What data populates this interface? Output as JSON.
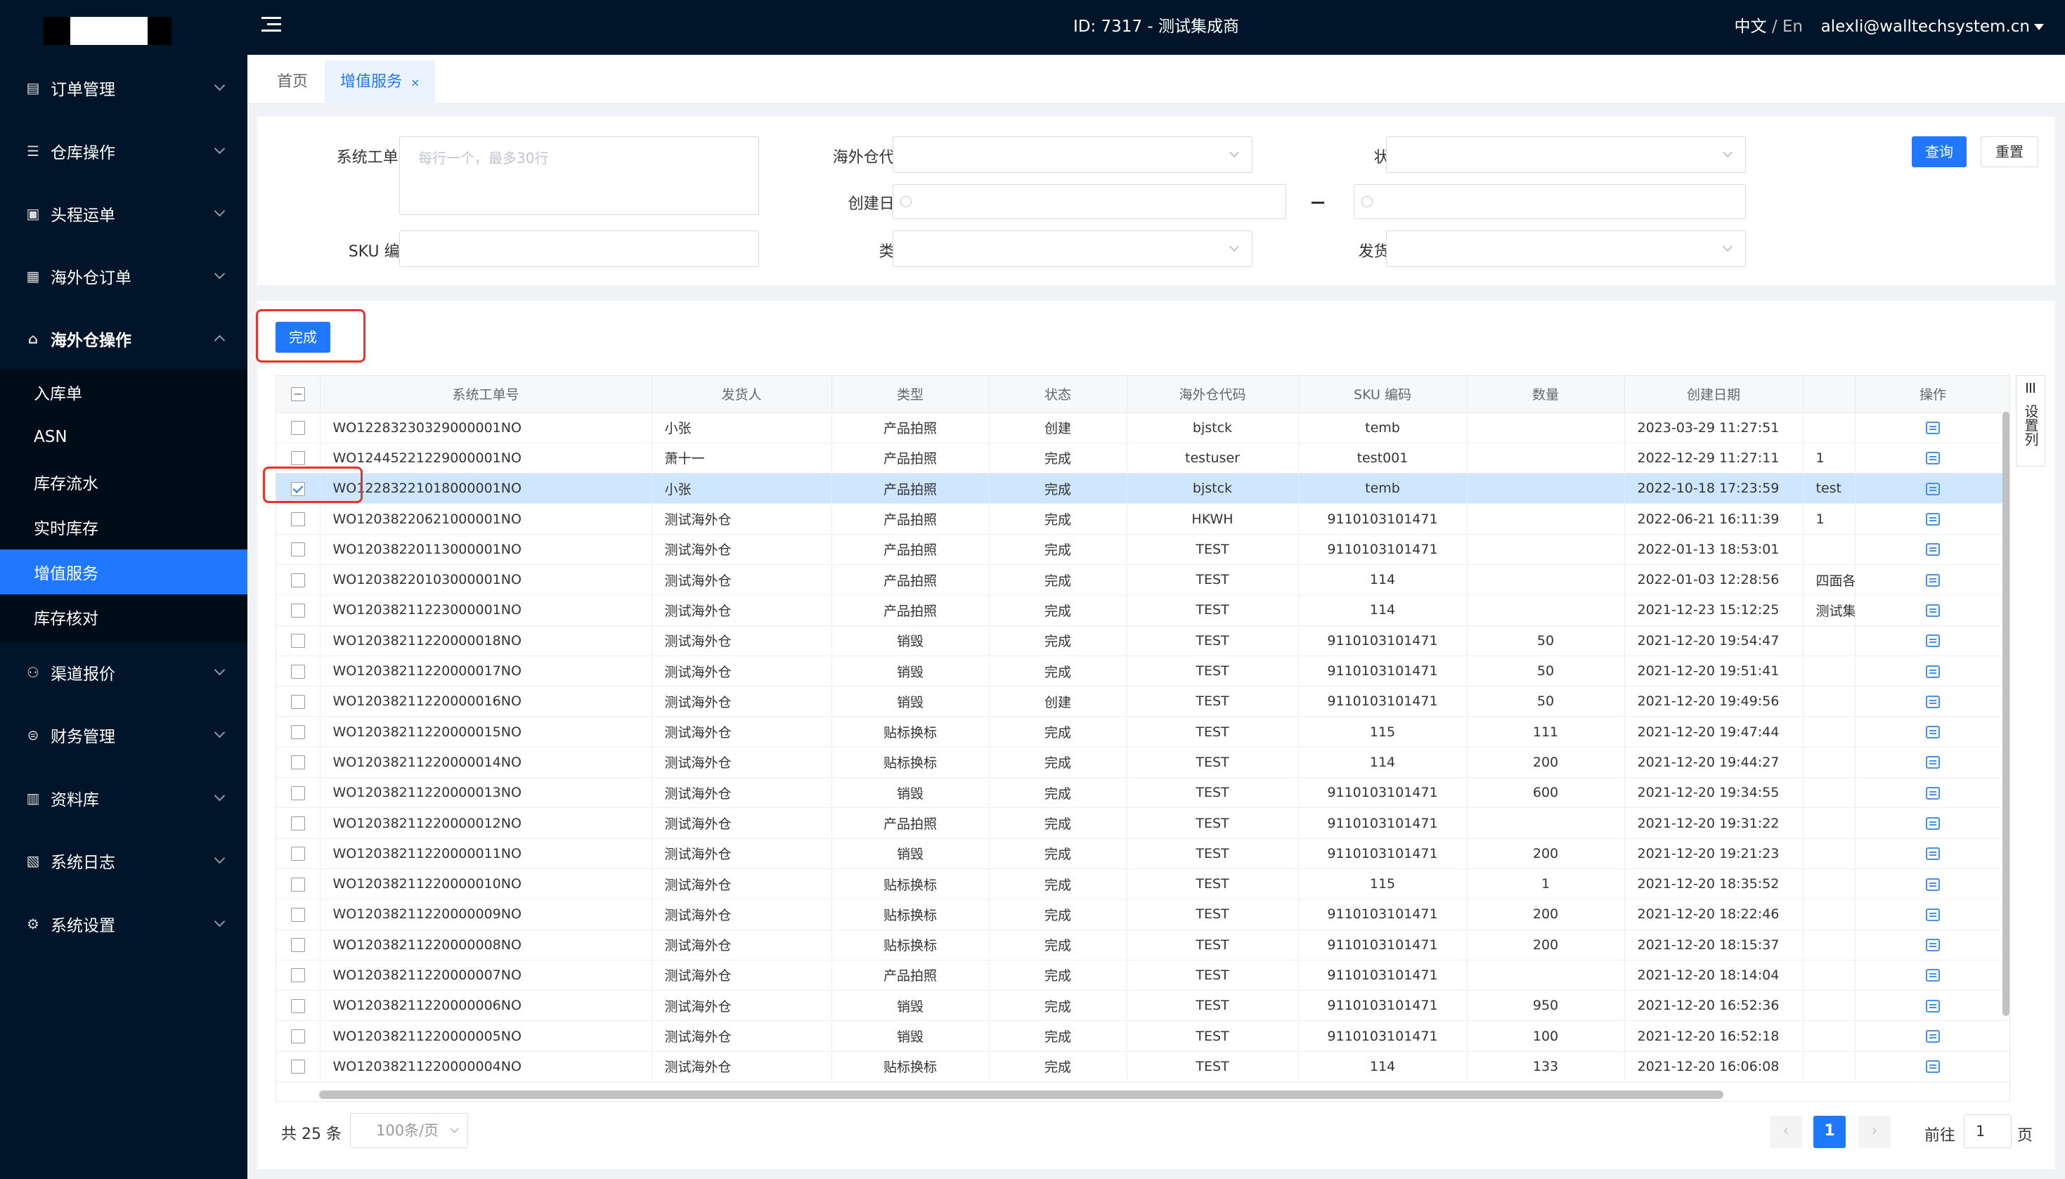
{
  "header": {
    "title": "ID: 7317 - 测试集成商",
    "lang_zh": "中文",
    "lang_sep": " / ",
    "lang_en": "En",
    "user_email": "alexli@walltechsystem.cn"
  },
  "sidebar": {
    "items": [
      {
        "label": "订单管理",
        "icon": "order-icon"
      },
      {
        "label": "仓库操作",
        "icon": "warehouse-icon"
      },
      {
        "label": "头程运单",
        "icon": "waybill-icon"
      },
      {
        "label": "海外仓订单",
        "icon": "overseas-order-icon"
      },
      {
        "label": "海外仓操作",
        "icon": "overseas-ops-icon"
      },
      {
        "label": "渠道报价",
        "icon": "channel-icon"
      },
      {
        "label": "财务管理",
        "icon": "finance-icon"
      },
      {
        "label": "资料库",
        "icon": "database-icon"
      },
      {
        "label": "系统日志",
        "icon": "log-icon"
      },
      {
        "label": "系统设置",
        "icon": "settings-icon"
      }
    ],
    "submenu": [
      "入库单",
      "ASN",
      "库存流水",
      "实时库存",
      "增值服务",
      "库存核对"
    ],
    "active_sub": "增值服务"
  },
  "tabs": {
    "home": "首页",
    "active": "增值服务",
    "close": "×"
  },
  "filters": {
    "sys_no_label": "系统工单号:",
    "sys_no_placeholder": "每行一个，最多30行",
    "wh_code_label": "海外仓代码:",
    "status_label": "状态:",
    "date_label": "创建日期:",
    "sku_label": "SKU 编码:",
    "type_label": "类型:",
    "shipper_label": "发货人:",
    "query": "查询",
    "reset": "重置"
  },
  "actions": {
    "complete": "完成"
  },
  "table": {
    "columns": [
      "系统工单号",
      "发货人",
      "类型",
      "状态",
      "海外仓代码",
      "SKU 编码",
      "数量",
      "创建日期",
      "",
      "操作"
    ],
    "rows": [
      [
        "WO12283230329000001NO",
        "小张",
        "产品拍照",
        "创建",
        "bjstck",
        "temb",
        "",
        "2023-03-29 11:27:51",
        ""
      ],
      [
        "WO12445221229000001NO",
        "萧十一",
        "产品拍照",
        "完成",
        "testuser",
        "test001",
        "",
        "2022-12-29 11:27:11",
        "1"
      ],
      [
        "WO12283221018000001NO",
        "小张",
        "产品拍照",
        "完成",
        "bjstck",
        "temb",
        "",
        "2022-10-18 17:23:59",
        "test"
      ],
      [
        "WO12038220621000001NO",
        "测试海外仓",
        "产品拍照",
        "完成",
        "HKWH",
        "9110103101471",
        "",
        "2022-06-21 16:11:39",
        "1"
      ],
      [
        "WO12038220113000001NO",
        "测试海外仓",
        "产品拍照",
        "完成",
        "TEST",
        "9110103101471",
        "",
        "2022-01-13 18:53:01",
        ""
      ],
      [
        "WO12038220103000001NO",
        "测试海外仓",
        "产品拍照",
        "完成",
        "TEST",
        "114",
        "",
        "2022-01-03 12:28:56",
        "四面各"
      ],
      [
        "WO12038211223000001NO",
        "测试海外仓",
        "产品拍照",
        "完成",
        "TEST",
        "114",
        "",
        "2021-12-23 15:12:25",
        "测试集"
      ],
      [
        "WO12038211220000018NO",
        "测试海外仓",
        "销毁",
        "完成",
        "TEST",
        "9110103101471",
        "50",
        "2021-12-20 19:54:47",
        ""
      ],
      [
        "WO12038211220000017NO",
        "测试海外仓",
        "销毁",
        "完成",
        "TEST",
        "9110103101471",
        "50",
        "2021-12-20 19:51:41",
        ""
      ],
      [
        "WO12038211220000016NO",
        "测试海外仓",
        "销毁",
        "创建",
        "TEST",
        "9110103101471",
        "50",
        "2021-12-20 19:49:56",
        ""
      ],
      [
        "WO12038211220000015NO",
        "测试海外仓",
        "贴标换标",
        "完成",
        "TEST",
        "115",
        "111",
        "2021-12-20 19:47:44",
        ""
      ],
      [
        "WO12038211220000014NO",
        "测试海外仓",
        "贴标换标",
        "完成",
        "TEST",
        "114",
        "200",
        "2021-12-20 19:44:27",
        ""
      ],
      [
        "WO12038211220000013NO",
        "测试海外仓",
        "销毁",
        "完成",
        "TEST",
        "9110103101471",
        "600",
        "2021-12-20 19:34:55",
        ""
      ],
      [
        "WO12038211220000012NO",
        "测试海外仓",
        "产品拍照",
        "完成",
        "TEST",
        "9110103101471",
        "",
        "2021-12-20 19:31:22",
        ""
      ],
      [
        "WO12038211220000011NO",
        "测试海外仓",
        "销毁",
        "完成",
        "TEST",
        "9110103101471",
        "200",
        "2021-12-20 19:21:23",
        ""
      ],
      [
        "WO12038211220000010NO",
        "测试海外仓",
        "贴标换标",
        "完成",
        "TEST",
        "115",
        "1",
        "2021-12-20 18:35:52",
        ""
      ],
      [
        "WO12038211220000009NO",
        "测试海外仓",
        "贴标换标",
        "完成",
        "TEST",
        "9110103101471",
        "200",
        "2021-12-20 18:22:46",
        ""
      ],
      [
        "WO12038211220000008NO",
        "测试海外仓",
        "贴标换标",
        "完成",
        "TEST",
        "9110103101471",
        "200",
        "2021-12-20 18:15:37",
        ""
      ],
      [
        "WO12038211220000007NO",
        "测试海外仓",
        "产品拍照",
        "完成",
        "TEST",
        "9110103101471",
        "",
        "2021-12-20 18:14:04",
        ""
      ],
      [
        "WO12038211220000006NO",
        "测试海外仓",
        "销毁",
        "完成",
        "TEST",
        "9110103101471",
        "950",
        "2021-12-20 16:52:36",
        ""
      ],
      [
        "WO12038211220000005NO",
        "测试海外仓",
        "销毁",
        "完成",
        "TEST",
        "9110103101471",
        "100",
        "2021-12-20 16:52:18",
        ""
      ],
      [
        "WO12038211220000004NO",
        "测试海外仓",
        "贴标换标",
        "完成",
        "TEST",
        "114",
        "133",
        "2021-12-20 16:06:08",
        ""
      ]
    ],
    "selected_row": 2,
    "set_columns": "设置列"
  },
  "pagination": {
    "total": "共 25 条",
    "page_size": "100条/页",
    "prev": "‹",
    "current": "1",
    "next": "›",
    "goto_label": "前往",
    "goto_value": "1",
    "goto_suffix": "页"
  }
}
